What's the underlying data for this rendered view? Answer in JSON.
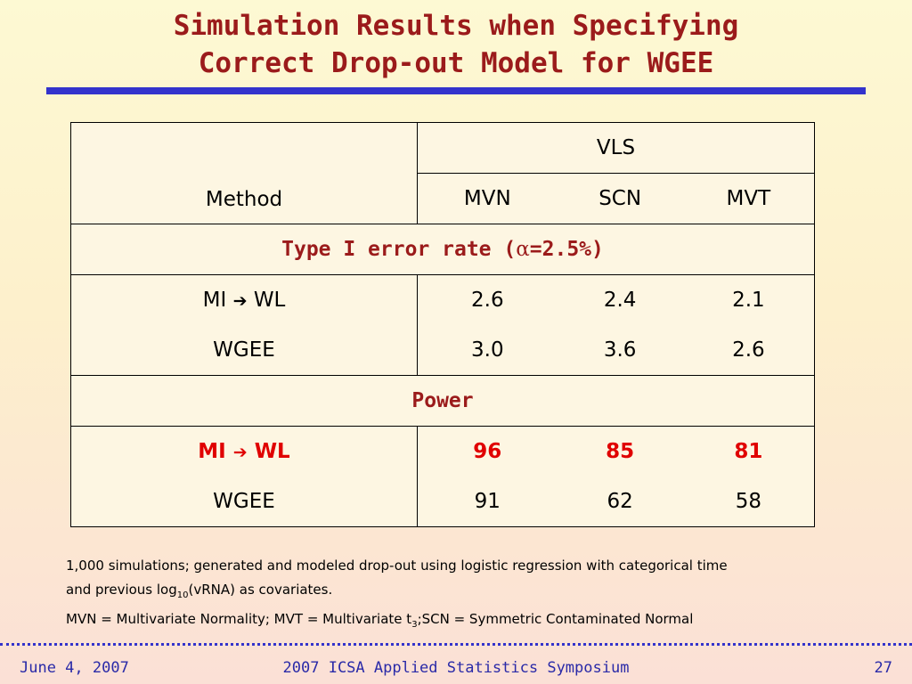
{
  "slide": {
    "title_line1": "Simulation Results when Specifying",
    "title_line2": "Correct Drop-out Model for WGEE"
  },
  "table": {
    "group_header": "VLS",
    "method_header": "Method",
    "columns": [
      "MVN",
      "SCN",
      "MVT"
    ],
    "section_type1": {
      "prefix": "Type I error rate (",
      "alpha_symbol": "α",
      "suffix": "=2.5%)"
    },
    "type1_rows": [
      {
        "method_a": "MI",
        "arrow": "➔",
        "method_b": "WL",
        "values": [
          "2.6",
          "2.4",
          "2.1"
        ]
      },
      {
        "method": "WGEE",
        "values": [
          "3.0",
          "3.6",
          "2.6"
        ]
      }
    ],
    "section_power": "Power",
    "power_rows": [
      {
        "method_a": "MI",
        "arrow": "➔",
        "method_b": "WL",
        "values": [
          "96",
          "85",
          "81"
        ],
        "highlight_color": "#e00000"
      },
      {
        "method": "WGEE",
        "values": [
          "91",
          "62",
          "58"
        ]
      }
    ]
  },
  "notes": {
    "line1": "1,000 simulations; generated and modeled drop-out using logistic regression with categorical time",
    "line2_a": "and previous log",
    "line2_sub": "10",
    "line2_b": "(vRNA) as covariates.",
    "line3_a": "MVN = Multivariate Normality; MVT = Multivariate t",
    "line3_sub": "3",
    "line3_b": ";SCN = Symmetric Contaminated Normal"
  },
  "footer": {
    "date": "June 4, 2007",
    "event": "2007 ICSA Applied Statistics Symposium",
    "page_number": "27"
  },
  "colors": {
    "title": "#9b1b1b",
    "rule": "#3333cc",
    "highlight": "#e00000",
    "footer_text": "#2a2aa8"
  }
}
